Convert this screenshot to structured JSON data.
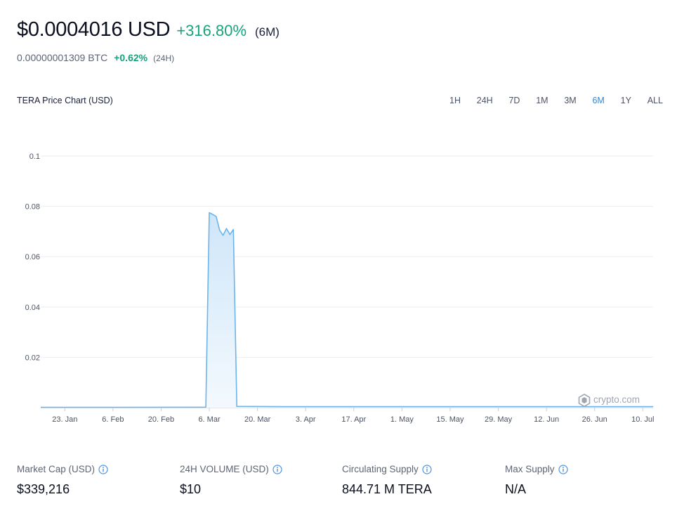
{
  "header": {
    "price": "$0.0004016 USD",
    "change": "+316.80%",
    "period": "(6M)",
    "btc_price": "0.00000001309 BTC",
    "btc_change": "+0.62%",
    "btc_period": "(24H)"
  },
  "chart_title": "TERA Price Chart (USD)",
  "ranges": [
    "1H",
    "24H",
    "7D",
    "1M",
    "3M",
    "6M",
    "1Y",
    "ALL"
  ],
  "active_range": "6M",
  "watermark": "crypto.com",
  "colors": {
    "accent": "#2e86d9",
    "positive": "#17a37b",
    "line": "#6cb4ec",
    "fill": "#d6eafa"
  },
  "chart_data": {
    "type": "area",
    "title": "TERA Price Chart (USD)",
    "xlabel": "",
    "ylabel": "",
    "y_ticks": [
      0.02,
      0.04,
      0.06,
      0.08,
      0.1
    ],
    "y_tick_labels": [
      "0.02",
      "0.04",
      "0.06",
      "0.08",
      "0.1"
    ],
    "ylim": [
      0,
      0.1
    ],
    "x_ticks": [
      "23. Jan",
      "6. Feb",
      "20. Feb",
      "6. Mar",
      "20. Mar",
      "3. Apr",
      "17. Apr",
      "1. May",
      "15. May",
      "29. May",
      "12. Jun",
      "26. Jun",
      "10. Jul"
    ],
    "x_range": [
      "2022-01-16",
      "2022-07-13"
    ],
    "grid": true,
    "legend": "none",
    "series": [
      {
        "points": [
          [
            "2022-01-16",
            0.0001
          ],
          [
            "2022-02-10",
            0.0001
          ],
          [
            "2022-03-05",
            0.0002
          ],
          [
            "2022-03-06",
            0.0775
          ],
          [
            "2022-03-07",
            0.0768
          ],
          [
            "2022-03-08",
            0.076
          ],
          [
            "2022-03-09",
            0.0705
          ],
          [
            "2022-03-10",
            0.0685
          ],
          [
            "2022-03-11",
            0.0712
          ],
          [
            "2022-03-12",
            0.0688
          ],
          [
            "2022-03-13",
            0.0708
          ],
          [
            "2022-03-14",
            0.0005
          ],
          [
            "2022-03-28",
            0.0004
          ],
          [
            "2022-04-20",
            0.0004
          ],
          [
            "2022-05-15",
            0.0004
          ],
          [
            "2022-06-10",
            0.0004
          ],
          [
            "2022-07-13",
            0.0004
          ]
        ]
      }
    ]
  },
  "stats": [
    {
      "label": "Market Cap (USD)",
      "value": "$339,216"
    },
    {
      "label": "24H VOLUME (USD)",
      "value": "$10"
    },
    {
      "label": "Circulating Supply",
      "value": "844.71 M TERA"
    },
    {
      "label": "Max Supply",
      "value": "N/A"
    }
  ]
}
